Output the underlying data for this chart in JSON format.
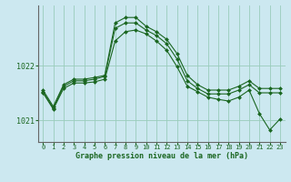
{
  "background_color": "#cce8f0",
  "grid_color": "#99ccbb",
  "line_color": "#1a6620",
  "marker_color": "#1a6620",
  "xlabel": "Graphe pression niveau de la mer (hPa)",
  "ylim": [
    1020.6,
    1023.1
  ],
  "xlim": [
    -0.5,
    23.5
  ],
  "yticks": [
    1021,
    1022
  ],
  "xticks": [
    0,
    1,
    2,
    3,
    4,
    5,
    6,
    7,
    8,
    9,
    10,
    11,
    12,
    13,
    14,
    15,
    16,
    17,
    18,
    19,
    20,
    21,
    22,
    23
  ],
  "series": [
    {
      "x": [
        0,
        1,
        2,
        3,
        4,
        5,
        6,
        7,
        8,
        9,
        10,
        11,
        12,
        13,
        14,
        15,
        16,
        17,
        18,
        19,
        20,
        21,
        22,
        23
      ],
      "y": [
        1021.55,
        1021.25,
        1021.65,
        1021.75,
        1021.75,
        1021.78,
        1021.82,
        1022.78,
        1022.88,
        1022.88,
        1022.72,
        1022.62,
        1022.48,
        1022.22,
        1021.82,
        1021.65,
        1021.55,
        1021.55,
        1021.55,
        1021.62,
        1021.72,
        1021.58,
        1021.58,
        1021.58
      ]
    },
    {
      "x": [
        0,
        1,
        2,
        3,
        4,
        5,
        6,
        7,
        8,
        9,
        10,
        11,
        12,
        13,
        14,
        15,
        16,
        17,
        18,
        19,
        20,
        21,
        22,
        23
      ],
      "y": [
        1021.52,
        1021.22,
        1021.62,
        1021.72,
        1021.72,
        1021.75,
        1021.8,
        1022.68,
        1022.78,
        1022.78,
        1022.65,
        1022.55,
        1022.4,
        1022.12,
        1021.72,
        1021.58,
        1021.48,
        1021.48,
        1021.48,
        1021.55,
        1021.65,
        1021.5,
        1021.5,
        1021.5
      ]
    },
    {
      "x": [
        0,
        1,
        2,
        3,
        4,
        5,
        6,
        7,
        8,
        9,
        10,
        11,
        12,
        13,
        14,
        15,
        16,
        17,
        18,
        19,
        20,
        21,
        22,
        23
      ],
      "y": [
        1021.5,
        1021.2,
        1021.58,
        1021.68,
        1021.68,
        1021.7,
        1021.75,
        1022.45,
        1022.62,
        1022.65,
        1022.58,
        1022.45,
        1022.28,
        1021.98,
        1021.62,
        1021.52,
        1021.42,
        1021.38,
        1021.35,
        1021.42,
        1021.55,
        1021.12,
        1020.82,
        1021.02
      ]
    }
  ]
}
